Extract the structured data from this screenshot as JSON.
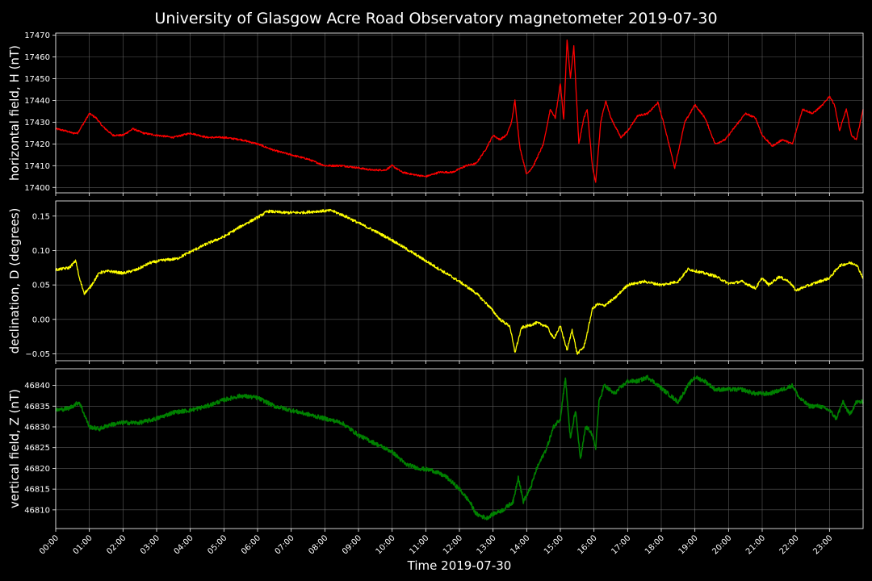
{
  "chart_data": {
    "title": "University of Glasgow Acre Road Observatory magnetometer 2019-07-30",
    "xlabel": "Time 2019-07-30",
    "x_ticks": [
      "00:00",
      "01:00",
      "02:00",
      "03:00",
      "04:00",
      "05:00",
      "06:00",
      "07:00",
      "08:00",
      "09:00",
      "10:00",
      "11:00",
      "12:00",
      "13:00",
      "14:00",
      "15:00",
      "16:00",
      "17:00",
      "18:00",
      "19:00",
      "20:00",
      "21:00",
      "22:00",
      "23:00"
    ],
    "x_range_hours": [
      0,
      24
    ],
    "grid": true,
    "panels": [
      {
        "type": "line",
        "ylabel": "horizontal field, H (nT)",
        "color": "#ff0000",
        "ylim": [
          17397.5,
          17471
        ],
        "y_ticks": [
          17400,
          17410,
          17420,
          17430,
          17440,
          17450,
          17460,
          17470
        ],
        "y_tick_labels": [
          "17400",
          "17410",
          "17420",
          "17430",
          "17440",
          "17450",
          "17460",
          "17470"
        ],
        "noise": 0.4,
        "x": [
          0,
          0.3,
          0.5,
          0.65,
          0.85,
          1.0,
          1.2,
          1.4,
          1.7,
          2.0,
          2.3,
          2.6,
          3.0,
          3.5,
          4.0,
          4.5,
          5.0,
          5.5,
          6.0,
          6.5,
          7.0,
          7.5,
          8.0,
          8.5,
          9.0,
          9.4,
          9.8,
          10.0,
          10.3,
          10.6,
          11.0,
          11.4,
          11.8,
          12.2,
          12.5,
          12.8,
          13.0,
          13.2,
          13.4,
          13.55,
          13.65,
          13.8,
          14.0,
          14.2,
          14.5,
          14.7,
          14.85,
          15.0,
          15.1,
          15.2,
          15.3,
          15.4,
          15.55,
          15.7,
          15.8,
          15.95,
          16.05,
          16.2,
          16.35,
          16.5,
          16.8,
          17.0,
          17.3,
          17.6,
          17.9,
          18.1,
          18.4,
          18.7,
          19.0,
          19.3,
          19.6,
          19.9,
          20.2,
          20.5,
          20.8,
          21.0,
          21.3,
          21.6,
          21.9,
          22.2,
          22.5,
          22.8,
          23.0,
          23.15,
          23.3,
          23.5,
          23.65,
          23.8,
          24.0
        ],
        "y": [
          17427,
          17426,
          17425,
          17425,
          17430,
          17434,
          17432,
          17428,
          17424,
          17424,
          17427,
          17425,
          17424,
          17423,
          17425,
          17423,
          17423,
          17422,
          17420,
          17417,
          17415,
          17413,
          17410,
          17410,
          17409,
          17408,
          17408,
          17410,
          17407,
          17406,
          17405,
          17407,
          17407,
          17410,
          17411,
          17418,
          17424,
          17422,
          17424,
          17430,
          17440,
          17418,
          17406,
          17410,
          17420,
          17436,
          17432,
          17448,
          17431,
          17468,
          17450,
          17465,
          17420,
          17432,
          17436,
          17410,
          17402,
          17430,
          17440,
          17432,
          17423,
          17426,
          17433,
          17434,
          17439,
          17428,
          17409,
          17430,
          17438,
          17432,
          17420,
          17422,
          17428,
          17434,
          17432,
          17424,
          17419,
          17422,
          17420,
          17436,
          17434,
          17438,
          17442,
          17438,
          17426,
          17436,
          17424,
          17422,
          17436
        ]
      },
      {
        "type": "line",
        "ylabel": "declination, D (degrees)",
        "color": "#ffff00",
        "ylim": [
          -0.06,
          0.172
        ],
        "y_ticks": [
          -0.05,
          0.0,
          0.05,
          0.1,
          0.15
        ],
        "y_tick_labels": [
          "−0.05",
          "0.00",
          "0.05",
          "0.10",
          "0.15"
        ],
        "noise": 0.002,
        "x": [
          0,
          0.4,
          0.6,
          0.7,
          0.85,
          1.0,
          1.3,
          1.6,
          2.0,
          2.4,
          2.8,
          3.2,
          3.6,
          4.0,
          4.5,
          5.0,
          5.5,
          6.0,
          6.3,
          6.8,
          7.3,
          7.8,
          8.2,
          8.6,
          9.0,
          9.5,
          10.0,
          10.5,
          11.0,
          11.5,
          12.0,
          12.5,
          12.9,
          13.2,
          13.5,
          13.65,
          13.85,
          14.0,
          14.3,
          14.6,
          14.8,
          15.0,
          15.2,
          15.35,
          15.5,
          15.7,
          15.8,
          15.95,
          16.1,
          16.3,
          16.6,
          17.0,
          17.5,
          18.0,
          18.5,
          18.8,
          19.2,
          19.6,
          20.0,
          20.4,
          20.8,
          21.0,
          21.2,
          21.5,
          21.8,
          22.0,
          22.3,
          22.7,
          23.0,
          23.3,
          23.6,
          23.8,
          24.0
        ],
        "y": [
          0.072,
          0.075,
          0.085,
          0.06,
          0.038,
          0.045,
          0.068,
          0.07,
          0.067,
          0.072,
          0.082,
          0.086,
          0.088,
          0.098,
          0.11,
          0.12,
          0.135,
          0.148,
          0.157,
          0.155,
          0.155,
          0.157,
          0.158,
          0.15,
          0.14,
          0.128,
          0.115,
          0.1,
          0.085,
          0.07,
          0.055,
          0.038,
          0.018,
          0.0,
          -0.01,
          -0.048,
          -0.012,
          -0.01,
          -0.005,
          -0.01,
          -0.028,
          -0.01,
          -0.045,
          -0.015,
          -0.05,
          -0.04,
          -0.02,
          0.015,
          0.022,
          0.02,
          0.03,
          0.05,
          0.055,
          0.05,
          0.055,
          0.073,
          0.068,
          0.063,
          0.052,
          0.055,
          0.045,
          0.06,
          0.05,
          0.062,
          0.055,
          0.042,
          0.048,
          0.055,
          0.06,
          0.078,
          0.082,
          0.08,
          0.06
        ]
      },
      {
        "type": "line",
        "ylabel": "vertical field, Z (nT)",
        "color": "#008000",
        "ylim": [
          46805.5,
          46844
        ],
        "y_ticks": [
          46810,
          46815,
          46820,
          46825,
          46830,
          46835,
          46840
        ],
        "y_tick_labels": [
          "46810",
          "46815",
          "46820",
          "46825",
          "46830",
          "46835",
          "46840"
        ],
        "noise": 0.5,
        "x": [
          0,
          0.4,
          0.7,
          0.8,
          1.0,
          1.3,
          1.6,
          2.0,
          2.5,
          3.0,
          3.5,
          4.0,
          4.5,
          5.0,
          5.5,
          6.0,
          6.5,
          7.0,
          7.5,
          8.0,
          8.5,
          9.0,
          9.5,
          10.0,
          10.4,
          10.8,
          11.2,
          11.6,
          12.0,
          12.3,
          12.5,
          12.8,
          13.0,
          13.3,
          13.6,
          13.75,
          13.9,
          14.1,
          14.3,
          14.6,
          14.8,
          15.0,
          15.15,
          15.3,
          15.45,
          15.6,
          15.75,
          15.9,
          16.05,
          16.15,
          16.3,
          16.6,
          17.0,
          17.3,
          17.6,
          17.9,
          18.2,
          18.5,
          18.8,
          19.0,
          19.3,
          19.6,
          20.0,
          20.4,
          20.8,
          21.2,
          21.6,
          21.9,
          22.1,
          22.4,
          22.7,
          23.0,
          23.2,
          23.4,
          23.6,
          23.8,
          24.0
        ],
        "y": [
          46834,
          46834.5,
          46836,
          46834,
          46830,
          46829.5,
          46830.5,
          46831,
          46831,
          46832,
          46833.5,
          46834,
          46835,
          46836.5,
          46837.5,
          46837,
          46835,
          46834,
          46833,
          46832,
          46831,
          46828,
          46826,
          46824,
          46821,
          46820,
          46819.5,
          46818,
          46815,
          46812,
          46809,
          46808,
          46809,
          46810,
          46812,
          46818,
          46812,
          46815,
          46820,
          46825,
          46830,
          46832,
          46842,
          46827,
          46834,
          46822,
          46830,
          46829,
          46825,
          46836,
          46840,
          46838,
          46841,
          46841,
          46842,
          46840,
          46838,
          46836,
          46840,
          46842,
          46841,
          46839,
          46839,
          46839,
          46838,
          46838,
          46839,
          46840,
          46837,
          46835,
          46835,
          46834,
          46832,
          46836,
          46833,
          46836,
          46836
        ]
      }
    ]
  }
}
